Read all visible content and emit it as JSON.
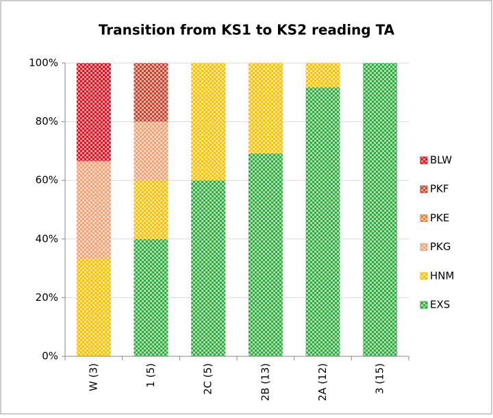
{
  "chart_data": {
    "type": "stacked_bar",
    "title": "Transition from KS1 to KS2 reading TA",
    "categories": [
      "W (3)",
      "1 (5)",
      "2C (5)",
      "2B (13)",
      "2A (12)",
      "3 (15)"
    ],
    "series": [
      {
        "name": "EXS",
        "color": "#2eaa3c",
        "values": [
          0,
          40,
          60,
          69.2,
          91.7,
          100
        ]
      },
      {
        "name": "HNM",
        "color": "#ffc000",
        "values": [
          33.3,
          20,
          40,
          30.8,
          8.3,
          0
        ]
      },
      {
        "name": "PKG",
        "color": "#f4a070",
        "values": [
          33.3,
          20,
          0,
          0,
          0,
          0
        ]
      },
      {
        "name": "PKE",
        "color": "#ed7d31",
        "values": [
          0,
          0,
          0,
          0,
          0,
          0
        ]
      },
      {
        "name": "PKF",
        "color": "#c8402a",
        "values": [
          0,
          20,
          0,
          0,
          0,
          0
        ]
      },
      {
        "name": "BLW",
        "color": "#e0101c",
        "values": [
          33.4,
          0,
          0,
          0,
          0,
          0
        ]
      }
    ],
    "ylim": [
      0,
      100
    ],
    "yticks": [
      {
        "value": 0,
        "label": "0%"
      },
      {
        "value": 20,
        "label": "20%"
      },
      {
        "value": 40,
        "label": "40%"
      },
      {
        "value": 60,
        "label": "60%"
      },
      {
        "value": 80,
        "label": "80%"
      },
      {
        "value": 100,
        "label": "100%"
      }
    ],
    "grid": true,
    "legend": "right"
  }
}
